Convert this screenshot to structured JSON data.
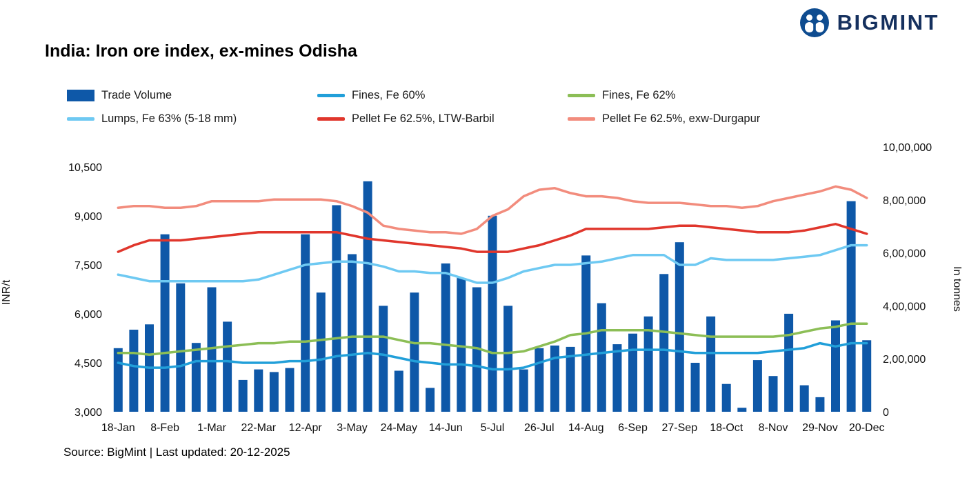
{
  "brand": {
    "name": "BIGMINT",
    "navy": "#15305E",
    "icon_blue": "#0E4C90"
  },
  "title": "India: Iron ore index, ex-mines Odisha",
  "source": "Source: BigMint | Last updated: 20-12-2025",
  "chart_data": {
    "type": "bar",
    "subtype": "combo-bar-line",
    "x_tick_labels": [
      "18-Jan",
      "8-Feb",
      "1-Mar",
      "22-Mar",
      "12-Apr",
      "3-May",
      "24-May",
      "14-Jun",
      "5-Jul",
      "26-Jul",
      "14-Aug",
      "6-Sep",
      "27-Sep",
      "18-Oct",
      "8-Nov",
      "29-Nov",
      "20-Dec"
    ],
    "points_per_tick": 3,
    "left_axis": {
      "label": "INR/t",
      "min": 3000,
      "max": 10500,
      "ticks": [
        {
          "v": 3000,
          "label": "3,000"
        },
        {
          "v": 4500,
          "label": "4,500"
        },
        {
          "v": 6000,
          "label": "6,000"
        },
        {
          "v": 7500,
          "label": "7,500"
        },
        {
          "v": 9000,
          "label": "9,000"
        },
        {
          "v": 10500,
          "label": "10,500"
        }
      ]
    },
    "right_axis": {
      "label": "In tonnes",
      "min": 0,
      "max": 1000000,
      "ticks": [
        {
          "v": 0,
          "label": "0"
        },
        {
          "v": 200000,
          "label": "2,00,000"
        },
        {
          "v": 400000,
          "label": "4,00,000"
        },
        {
          "v": 600000,
          "label": "6,00,000"
        },
        {
          "v": 800000,
          "label": "8,00,000"
        },
        {
          "v": 1000000,
          "label": "10,00,000"
        }
      ]
    },
    "bars": {
      "name": "Trade Volume",
      "axis": "right",
      "color": "#0E58A8",
      "values": [
        240000,
        310000,
        330000,
        670000,
        485000,
        260000,
        470000,
        340000,
        120000,
        160000,
        150000,
        165000,
        670000,
        450000,
        780000,
        595000,
        870000,
        400000,
        155000,
        450000,
        90000,
        560000,
        505000,
        470000,
        740000,
        400000,
        160000,
        240000,
        250000,
        245000,
        590000,
        410000,
        255000,
        295000,
        360000,
        520000,
        640000,
        185000,
        360000,
        105000,
        15000,
        195000,
        135000,
        370000,
        100000,
        55000,
        345000,
        795000,
        270000
      ]
    },
    "series": [
      {
        "name": "Fines, Fe 60%",
        "axis": "left",
        "color": "#219FD9",
        "values": [
          4500,
          4400,
          4350,
          4350,
          4400,
          4550,
          4550,
          4550,
          4500,
          4500,
          4500,
          4550,
          4550,
          4600,
          4700,
          4750,
          4800,
          4750,
          4650,
          4550,
          4500,
          4450,
          4450,
          4400,
          4300,
          4300,
          4350,
          4500,
          4650,
          4700,
          4750,
          4800,
          4850,
          4900,
          4900,
          4900,
          4850,
          4800,
          4800,
          4800,
          4800,
          4800,
          4850,
          4900,
          4950,
          5100,
          5000,
          5100,
          5100
        ]
      },
      {
        "name": "Fines, Fe 62%",
        "axis": "left",
        "color": "#8CBE56",
        "values": [
          4800,
          4800,
          4750,
          4800,
          4850,
          4900,
          4950,
          5000,
          5050,
          5100,
          5100,
          5150,
          5150,
          5200,
          5250,
          5300,
          5300,
          5300,
          5200,
          5100,
          5100,
          5050,
          5000,
          4950,
          4800,
          4800,
          4850,
          5000,
          5150,
          5350,
          5400,
          5500,
          5500,
          5500,
          5500,
          5450,
          5400,
          5350,
          5300,
          5300,
          5300,
          5300,
          5300,
          5350,
          5450,
          5550,
          5600,
          5700,
          5700
        ]
      },
      {
        "name": "Lumps, Fe 63% (5-18 mm)",
        "axis": "left",
        "color": "#6EC9F2",
        "values": [
          7200,
          7100,
          7000,
          7000,
          7000,
          7000,
          7000,
          7000,
          7000,
          7050,
          7200,
          7350,
          7500,
          7550,
          7600,
          7600,
          7550,
          7450,
          7300,
          7300,
          7250,
          7250,
          7100,
          6950,
          6950,
          7100,
          7300,
          7400,
          7500,
          7500,
          7550,
          7600,
          7700,
          7800,
          7800,
          7800,
          7500,
          7500,
          7700,
          7650,
          7650,
          7650,
          7650,
          7700,
          7750,
          7800,
          7950,
          8100,
          8100
        ]
      },
      {
        "name": "Pellet Fe 62.5%, LTW-Barbil",
        "axis": "left",
        "color": "#E0362C",
        "values": [
          7900,
          8100,
          8250,
          8250,
          8250,
          8300,
          8350,
          8400,
          8450,
          8500,
          8500,
          8500,
          8500,
          8500,
          8500,
          8400,
          8300,
          8250,
          8200,
          8150,
          8100,
          8050,
          8000,
          7900,
          7900,
          7900,
          8000,
          8100,
          8250,
          8400,
          8600,
          8600,
          8600,
          8600,
          8600,
          8650,
          8700,
          8700,
          8650,
          8600,
          8550,
          8500,
          8500,
          8500,
          8550,
          8650,
          8750,
          8600,
          8450
        ]
      },
      {
        "name": "Pellet Fe 62.5%, exw-Durgapur",
        "axis": "left",
        "color": "#F28C7D",
        "values": [
          9250,
          9300,
          9300,
          9250,
          9250,
          9300,
          9450,
          9450,
          9450,
          9450,
          9500,
          9500,
          9500,
          9500,
          9450,
          9300,
          9100,
          8700,
          8600,
          8550,
          8500,
          8500,
          8450,
          8600,
          9000,
          9200,
          9600,
          9800,
          9850,
          9700,
          9600,
          9600,
          9550,
          9450,
          9400,
          9400,
          9400,
          9350,
          9300,
          9300,
          9250,
          9300,
          9450,
          9550,
          9650,
          9750,
          9900,
          9800,
          9550
        ]
      }
    ],
    "legend": [
      {
        "label": "Trade Volume",
        "swatch": "bar",
        "color": "#0E58A8"
      },
      {
        "label": "Fines, Fe 60%",
        "swatch": "line",
        "color": "#219FD9"
      },
      {
        "label": "Fines, Fe 62%",
        "swatch": "line",
        "color": "#8CBE56"
      },
      {
        "label": "Lumps, Fe 63% (5-18 mm)",
        "swatch": "line",
        "color": "#6EC9F2"
      },
      {
        "label": "Pellet Fe 62.5%, LTW-Barbil",
        "swatch": "line",
        "color": "#E0362C"
      },
      {
        "label": "Pellet Fe 62.5%, exw-Durgapur",
        "swatch": "line",
        "color": "#F28C7D"
      }
    ],
    "grid": false,
    "legend_position": "top-left"
  }
}
